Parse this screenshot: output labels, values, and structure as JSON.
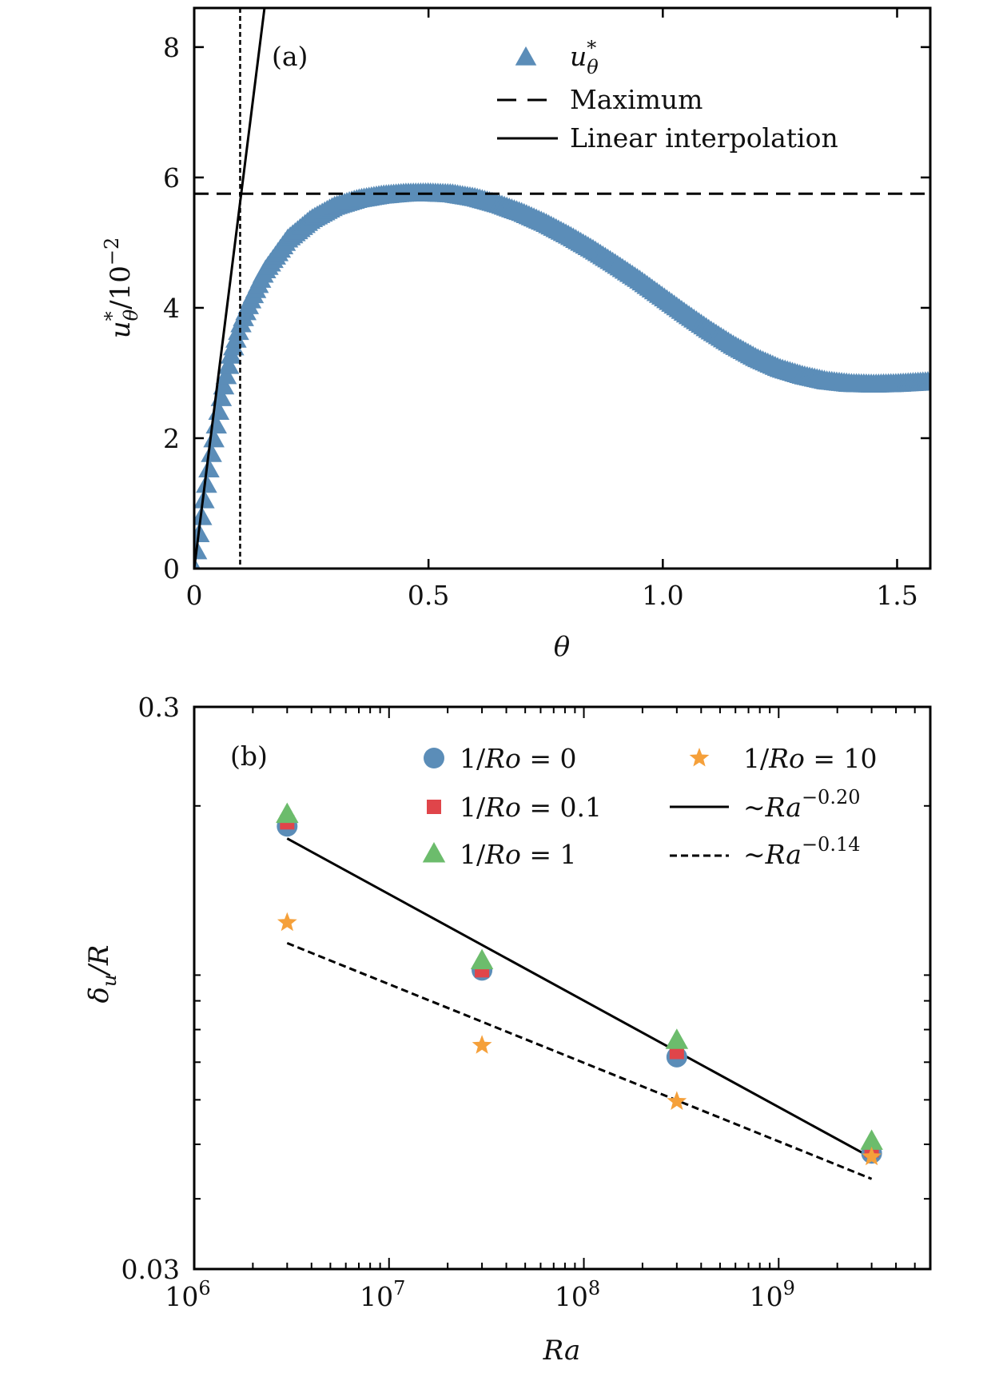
{
  "chart_data": [
    {
      "panel": "(a)",
      "type": "scatter",
      "title": "",
      "xlabel": "θ",
      "ylabel": "u*θ/10−2",
      "ylabel_parts": {
        "base": "u",
        "sup": "*",
        "sub": "θ",
        "rest": "/10",
        "exp": "−2"
      },
      "xlim": [
        0,
        1.5708
      ],
      "ylim": [
        0,
        8.6
      ],
      "x_ticks": [
        0,
        0.5,
        1.0,
        1.5
      ],
      "x_tick_labels": [
        "0",
        "0.5",
        "1.0",
        "1.5"
      ],
      "y_ticks": [
        0,
        2,
        4,
        6,
        8
      ],
      "y_tick_labels": [
        "0",
        "2",
        "4",
        "6",
        "8"
      ],
      "grid": false,
      "legend_position": "top-right",
      "series": [
        {
          "name": "u*θ",
          "legend_parts": {
            "base": "u",
            "sup": "*",
            "sub": "θ"
          },
          "kind": "markers",
          "marker": "triangle",
          "color": "#5b8db8",
          "x_range": [
            0,
            1.5708
          ],
          "n_points": 300,
          "control_points": {
            "x": [
              0,
              0.02,
              0.04,
              0.06,
              0.08,
              0.1,
              0.12,
              0.15,
              0.2,
              0.25,
              0.3,
              0.35,
              0.4,
              0.45,
              0.5,
              0.55,
              0.6,
              0.65,
              0.7,
              0.75,
              0.8,
              0.85,
              0.9,
              0.95,
              1.0,
              1.05,
              1.1,
              1.15,
              1.2,
              1.25,
              1.3,
              1.35,
              1.4,
              1.45,
              1.5,
              1.5708
            ],
            "y": [
              0,
              1.0,
              1.9,
              2.7,
              3.3,
              3.75,
              4.1,
              4.55,
              5.05,
              5.35,
              5.55,
              5.66,
              5.72,
              5.75,
              5.755,
              5.74,
              5.68,
              5.58,
              5.45,
              5.29,
              5.1,
              4.89,
              4.66,
              4.42,
              4.16,
              3.9,
              3.65,
              3.42,
              3.22,
              3.06,
              2.95,
              2.87,
              2.83,
              2.82,
              2.83,
              2.86
            ]
          }
        },
        {
          "name": "Maximum",
          "kind": "line",
          "style": "dashed",
          "color": "#000000",
          "orientation": "horizontal",
          "y": 5.75
        },
        {
          "name": "Linear interpolation",
          "kind": "line",
          "style": "solid",
          "color": "#000000",
          "points": {
            "x": [
              0,
              0.15
            ],
            "y": [
              0,
              8.6
            ]
          }
        },
        {
          "name": "",
          "kind": "line",
          "style": "dotted",
          "color": "#000000",
          "orientation": "vertical",
          "x": 0.098
        }
      ]
    },
    {
      "panel": "(b)",
      "type": "scatter",
      "title": "",
      "xlabel": "Ra",
      "ylabel": "δu/R",
      "ylabel_parts": {
        "base": "δ",
        "sub": "u",
        "rest": "/R"
      },
      "x_scale": "log",
      "y_scale": "log",
      "xlim": [
        1000000,
        6000000000
      ],
      "ylim": [
        0.03,
        0.3
      ],
      "x_ticks": [
        1000000,
        10000000,
        100000000,
        1000000000
      ],
      "x_tick_labels": [
        {
          "base": "10",
          "exp": "6"
        },
        {
          "base": "10",
          "exp": "7"
        },
        {
          "base": "10",
          "exp": "8"
        },
        {
          "base": "10",
          "exp": "9"
        }
      ],
      "y_ticks": [
        0.03,
        0.3
      ],
      "y_tick_labels": [
        "0.03",
        "0.3"
      ],
      "grid": false,
      "legend_position": "top-right",
      "x": [
        3000000,
        30000000,
        300000000,
        3000000000
      ],
      "series": [
        {
          "name": "1/Ro = 0",
          "legend_parts": [
            "1/",
            "Ro",
            " = 0"
          ],
          "marker": "circle",
          "color": "#5b8db8",
          "values": [
            0.184,
            0.102,
            0.0715,
            0.0482
          ]
        },
        {
          "name": "1/Ro = 0.1",
          "legend_parts": [
            "1/",
            "Ro",
            " = 0.1"
          ],
          "marker": "square",
          "color": "#e0454a",
          "values": [
            0.187,
            0.102,
            0.073,
            0.0488
          ]
        },
        {
          "name": "1/Ro = 1",
          "legend_parts": [
            "1/",
            "Ro",
            " = 1"
          ],
          "marker": "triangle",
          "color": "#6cbc6c",
          "values": [
            0.193,
            0.106,
            0.0765,
            0.0506
          ]
        },
        {
          "name": "1/Ro = 10",
          "legend_parts": [
            "1/",
            "Ro",
            " = 10"
          ],
          "marker": "star",
          "color": "#f5a03a",
          "values": [
            0.124,
            0.075,
            0.0596,
            0.0475
          ]
        },
        {
          "name": "~Ra−0.20",
          "legend_parts": {
            "pre": "∼",
            "base": "Ra",
            "exp": "−0.20"
          },
          "kind": "line",
          "style": "solid",
          "color": "#000000",
          "points": {
            "x": [
              3000000,
              3000000000
            ],
            "y": [
              0.175,
              0.0473
            ]
          }
        },
        {
          "name": "~Ra−0.14",
          "legend_parts": {
            "pre": "∼",
            "base": "Ra",
            "exp": "−0.14"
          },
          "kind": "line",
          "style": "dashed",
          "color": "#000000",
          "points": {
            "x": [
              3000000,
              3000000000
            ],
            "y": [
              0.114,
              0.0434
            ]
          }
        }
      ]
    }
  ]
}
